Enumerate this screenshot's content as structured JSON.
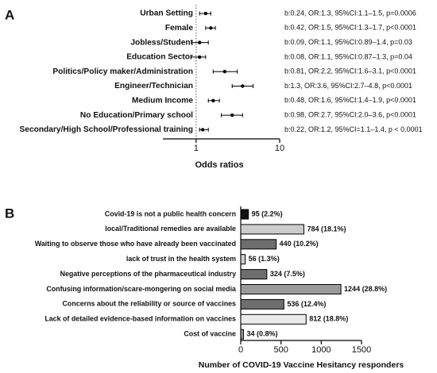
{
  "chart_data": [
    {
      "type": "forest",
      "panel": "A",
      "xlabel": "Odds ratios",
      "log_scale": true,
      "xlim": [
        0.4,
        10
      ],
      "xticks": [
        1,
        10
      ],
      "reference_line": 1,
      "color": "#000000",
      "categories": [
        "Urban Setting",
        "Female",
        "Jobless/Student",
        "Education Sector",
        "Politics/Policy maker/Administration",
        "Engineer/Technician",
        "Medium Income",
        "No Education/Primary school",
        "Secondary/High School/Professional training"
      ],
      "values": [
        1.3,
        1.5,
        1.1,
        1.1,
        2.2,
        3.6,
        1.6,
        2.7,
        1.2
      ],
      "lower": [
        1.1,
        1.3,
        0.89,
        0.87,
        1.6,
        2.7,
        1.4,
        2.0,
        1.1
      ],
      "upper": [
        1.5,
        1.7,
        1.4,
        1.3,
        3.1,
        4.8,
        1.9,
        3.6,
        1.4
      ],
      "annotations": [
        "b:0.24, OR:1.3, 95%CI:1.1–1.5, p=0.0006",
        "b:0.42, OR:1.5, 95%CI:1.3–1.7, p<0.0001",
        "b:0.09, OR:1.1, 95%CI:0.89–1.4, p=0.03",
        "b:0.08, OR:1.1, 95%CI:0.87–1.3, p=0.04",
        "b:0.81, OR:2.2, 95%CI:1.6–3.1, p<0.0001",
        "b:1.3, OR:3.6, 95%CI:2.7–4.8, p<0.0001",
        "b:0.48, OR:1.6, 95%CI:1.4–1.9, p<0.0001",
        "b:0.98, OR:2.7, 95%CI:2.0–3.6, p<0.0001",
        "b:0.22, OR:1.2, 95%CI=1.1–1.4, p < 0.0001"
      ]
    },
    {
      "type": "bar",
      "panel": "B",
      "orientation": "horizontal",
      "xlabel": "Number of COVID-19 Vaccine Hesitancy responders",
      "xlim": [
        0,
        1500
      ],
      "xticks": [
        0,
        500,
        1000,
        1500
      ],
      "categories": [
        "Covid-19 is not a public health concern",
        "local/Traditional remedies are available",
        "Waiting to observe those who have already been vaccinated",
        "lack of trust in the health system",
        "Negative perceptions of the pharmaceutical industry",
        "Confusing information/scare-mongering on social media",
        "Concerns about the reliability or source of vaccines",
        "Lack of detailed evidence-based information on vaccines",
        "Cost of vaccine"
      ],
      "values": [
        95,
        784,
        440,
        56,
        324,
        1244,
        536,
        812,
        34
      ],
      "value_labels": [
        "95 (2.2%)",
        "784 (18.1%)",
        "440 (10.2%)",
        "56 (1.3%)",
        "324 (7.5%)",
        "1244 (28.8%)",
        "536 (12.4%)",
        "812 (18.8%)",
        "34 (0.8%)"
      ],
      "colors": [
        "#111111",
        "#cccccc",
        "#6e6e6e",
        "#cccccc",
        "#6e6e6e",
        "#9a9a9a",
        "#6e6e6e",
        "#ebebeb",
        "#9a9a9a"
      ]
    }
  ]
}
